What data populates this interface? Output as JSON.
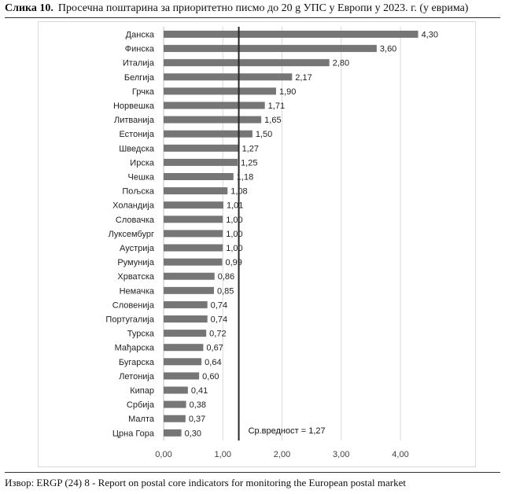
{
  "figure": {
    "label": "Слика 10.",
    "title": "Просечна поштарина за приоритетно писмо до 20 g УПС у Европи у 2023. г. (у еврима)",
    "source": "Извор: ERGP (24) 8 - Report on postal core indicators for monitoring the European postal market"
  },
  "chart_data": {
    "type": "bar",
    "orientation": "horizontal",
    "categories": [
      "Данска",
      "Финска",
      "Италија",
      "Белгија",
      "Грчка",
      "Норвешка",
      "Литванија",
      "Естонија",
      "Шведска",
      "Ирска",
      "Чешка",
      "Пољска",
      "Холандија",
      "Словачка",
      "Луксембург",
      "Аустрија",
      "Румунија",
      "Хрватска",
      "Немачка",
      "Словенија",
      "Португалија",
      "Турска",
      "Мађарска",
      "Бугарска",
      "Летонија",
      "Кипар",
      "Србија",
      "Малта",
      "Црна Гора"
    ],
    "values": [
      4.3,
      3.6,
      2.8,
      2.17,
      1.9,
      1.71,
      1.65,
      1.5,
      1.27,
      1.25,
      1.18,
      1.08,
      1.01,
      1.0,
      1.0,
      1.0,
      0.99,
      0.86,
      0.85,
      0.74,
      0.74,
      0.72,
      0.67,
      0.64,
      0.6,
      0.41,
      0.38,
      0.37,
      0.3
    ],
    "value_labels": [
      "4,30",
      "3,60",
      "2,80",
      "2,17",
      "1,90",
      "1,71",
      "1,65",
      "1,50",
      "1,27",
      "1,25",
      "1,18",
      "1,08",
      "1,01",
      "1,00",
      "1,00",
      "1,00",
      "0,99",
      "0,86",
      "0,85",
      "0,74",
      "0,74",
      "0,72",
      "0,67",
      "0,64",
      "0,60",
      "0,41",
      "0,38",
      "0,37",
      "0,30"
    ],
    "xlim": [
      0,
      4.5
    ],
    "xticks": [
      0,
      1,
      2,
      3,
      4
    ],
    "xtick_labels": [
      "0,00",
      "1,00",
      "2,00",
      "3,00",
      "4,00"
    ],
    "grid": "vertical",
    "reference_line": {
      "value": 1.27,
      "label": "Ср.вредност = 1,27"
    },
    "bar_color": "#767676"
  }
}
